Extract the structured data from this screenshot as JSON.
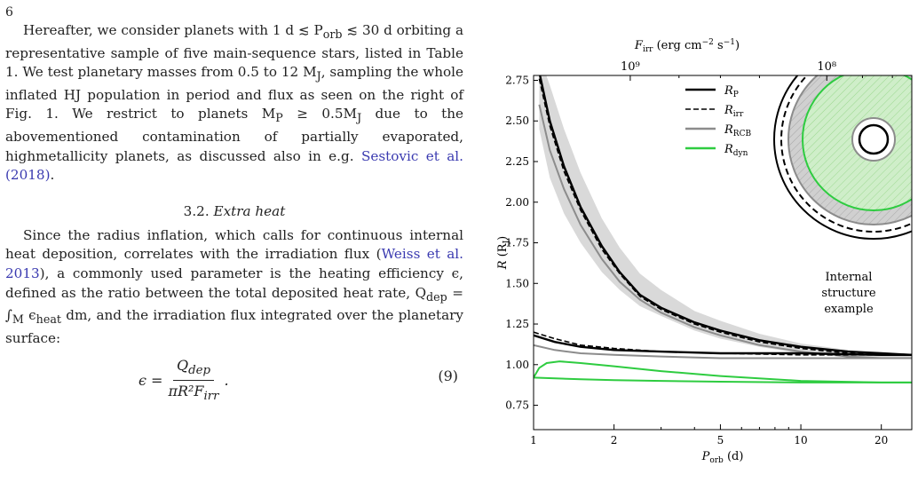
{
  "page_number": "6",
  "text": {
    "p1_main": "Hereafter, we consider planets with 1 d ≲ P",
    "p1_sub": "orb",
    "p1_rest": " ≲ 30 d orbiting a representative sample of five main-sequence stars, listed in Table 1. We test planetary masses from 0.5 to 12 M",
    "p1_sub2": "J",
    "p1_rest2": ", sampling the whole inflated HJ population in period and flux as seen on the right of Fig. 1. We restrict to planets M",
    "p1_sub3": "P",
    "p1_rest3": " ≥ 0.5M",
    "p1_sub4": "J",
    "p1_rest4": " due to the abovementioned contamination of partially evaporated, highmetallicity planets, as discussed also in e.g. ",
    "p1_link": "Sestovic et al. (2018)",
    "p1_end": ".",
    "section_number": "3.2.",
    "section_title": "Extra heat",
    "p2_a": "Since the radius inflation, which calls for continuous internal heat deposition, correlates with the irradiation flux (",
    "p2_link": "Weiss et al. 2013",
    "p2_b": "), a commonly used parameter is the heating efficiency ϵ, defined as the ratio between the total deposited heat rate, Q",
    "p2_sub": "dep",
    "p2_c": " = ∫",
    "p2_subM": "M",
    "p2_d": " ϵ",
    "p2_sub2": "heat",
    "p2_e": " dm, and the irradiation flux integrated over the planetary surface:",
    "eq_lhs": "ϵ =",
    "eq_num": "Q",
    "eq_num_sub": "dep",
    "eq_den": "πR²F",
    "eq_den_sub": "irr",
    "eq_tail": ".",
    "eq_label": "(9)"
  },
  "chart_data": {
    "type": "line",
    "xlabel": "P_orb (d)",
    "ylabel": "R (R_J)",
    "top_axis_label": "F_irr (erg cm⁻² s⁻¹)",
    "x_scale": "log",
    "xlim": [
      1,
      26
    ],
    "ylim": [
      0.6,
      2.78
    ],
    "x_ticks": [
      1,
      2,
      5,
      10,
      20
    ],
    "x_tick_labels": [
      "1",
      "2",
      "5",
      "10",
      "20"
    ],
    "y_ticks": [
      0.75,
      1.0,
      1.25,
      1.5,
      1.75,
      2.0,
      2.25,
      2.5,
      2.75
    ],
    "y_tick_labels": [
      "0.75",
      "1.00",
      "1.25",
      "1.50",
      "1.75",
      "2.00",
      "2.25",
      "2.50",
      "2.75"
    ],
    "top_ticks": [
      {
        "x": 2.3,
        "label": "10⁹"
      },
      {
        "x": 12.5,
        "label": "10⁸"
      }
    ],
    "legend_position": "top-center",
    "legend": [
      {
        "label": "R_P",
        "main": "R",
        "sub": "P",
        "color": "#000000",
        "dash": "solid"
      },
      {
        "label": "R_irr",
        "main": "R",
        "sub": "irr",
        "color": "#000000",
        "dash": "dashed"
      },
      {
        "label": "R_RCB",
        "main": "R",
        "sub": "RCB",
        "color": "#8c8c8c",
        "dash": "solid"
      },
      {
        "label": "R_dyn",
        "main": "R",
        "sub": "dyn",
        "color": "#2ecc40",
        "dash": "solid"
      }
    ],
    "series": [
      {
        "key": "R_P_high",
        "color": "#000000",
        "dash": "solid",
        "x": [
          1.05,
          1.15,
          1.3,
          1.5,
          1.8,
          2.1,
          2.5,
          3,
          4,
          5,
          7,
          10,
          15,
          20,
          26
        ],
        "y": [
          2.8,
          2.5,
          2.22,
          1.97,
          1.73,
          1.57,
          1.43,
          1.35,
          1.26,
          1.21,
          1.15,
          1.11,
          1.08,
          1.07,
          1.06
        ]
      },
      {
        "key": "R_irr_high",
        "color": "#000000",
        "dash": "dashed",
        "x": [
          1.05,
          1.15,
          1.3,
          1.5,
          1.8,
          2.1,
          2.5,
          3,
          4,
          5,
          7,
          10,
          15,
          20,
          26
        ],
        "y": [
          2.76,
          2.47,
          2.19,
          1.95,
          1.71,
          1.56,
          1.42,
          1.34,
          1.25,
          1.2,
          1.14,
          1.1,
          1.07,
          1.06,
          1.06
        ]
      },
      {
        "key": "R_RCB_high",
        "color": "#8c8c8c",
        "dash": "solid",
        "x": [
          1.05,
          1.15,
          1.3,
          1.5,
          1.8,
          2.1,
          2.5,
          3,
          4,
          5,
          7,
          10,
          15,
          20,
          26
        ],
        "y": [
          2.6,
          2.32,
          2.08,
          1.86,
          1.65,
          1.51,
          1.4,
          1.32,
          1.23,
          1.18,
          1.12,
          1.08,
          1.05,
          1.04,
          1.04
        ]
      },
      {
        "key": "R_P_low",
        "color": "#000000",
        "dash": "solid",
        "x": [
          1,
          1.2,
          1.5,
          2,
          3,
          5,
          10,
          20,
          26
        ],
        "y": [
          1.18,
          1.14,
          1.11,
          1.09,
          1.08,
          1.07,
          1.07,
          1.06,
          1.06
        ]
      },
      {
        "key": "R_irr_low",
        "color": "#000000",
        "dash": "dashed",
        "x": [
          1,
          1.2,
          1.5,
          2,
          3,
          5,
          10,
          20,
          26
        ],
        "y": [
          1.2,
          1.16,
          1.12,
          1.1,
          1.08,
          1.07,
          1.06,
          1.06,
          1.06
        ]
      },
      {
        "key": "R_RCB_low",
        "color": "#8c8c8c",
        "dash": "solid",
        "x": [
          1,
          1.2,
          1.5,
          2,
          3,
          5,
          10,
          20,
          26
        ],
        "y": [
          1.12,
          1.09,
          1.07,
          1.06,
          1.05,
          1.04,
          1.04,
          1.04,
          1.04
        ]
      },
      {
        "key": "R_dyn_high",
        "color": "#2ecc40",
        "dash": "solid",
        "x": [
          1,
          1.05,
          1.12,
          1.25,
          1.5,
          2,
          3,
          5,
          10,
          20,
          26
        ],
        "y": [
          0.92,
          0.98,
          1.01,
          1.02,
          1.01,
          0.99,
          0.96,
          0.93,
          0.9,
          0.89,
          0.89
        ]
      },
      {
        "key": "R_dyn_low",
        "color": "#2ecc40",
        "dash": "solid",
        "x": [
          1,
          1.5,
          2,
          3,
          5,
          10,
          20,
          26
        ],
        "y": [
          0.92,
          0.91,
          0.905,
          0.9,
          0.895,
          0.89,
          0.89,
          0.89
        ]
      }
    ],
    "band": {
      "color": "#d9d9d9",
      "x": [
        1.05,
        1.15,
        1.3,
        1.5,
        1.8,
        2.1,
        2.5,
        3,
        4,
        5,
        7,
        10,
        15,
        20,
        26
      ],
      "upper": [
        2.9,
        2.72,
        2.45,
        2.18,
        1.9,
        1.72,
        1.56,
        1.46,
        1.33,
        1.27,
        1.19,
        1.13,
        1.09,
        1.07,
        1.06
      ],
      "lower": [
        2.45,
        2.15,
        1.93,
        1.75,
        1.57,
        1.46,
        1.36,
        1.3,
        1.21,
        1.16,
        1.11,
        1.07,
        1.05,
        1.04,
        1.04
      ]
    },
    "annotation": [
      "Internal",
      "structure",
      "example"
    ]
  }
}
